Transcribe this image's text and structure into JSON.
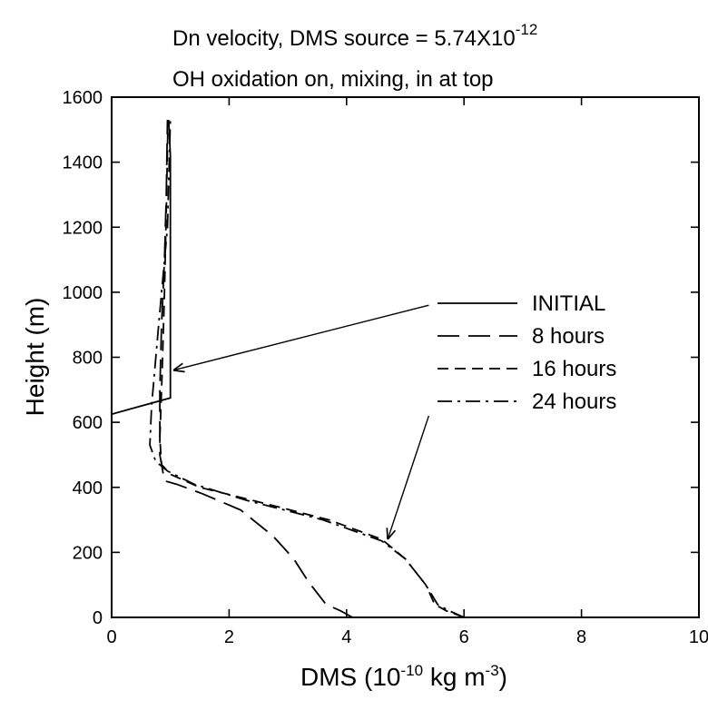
{
  "chart_data": {
    "type": "line",
    "title": {
      "line1_prefix": "Dn velocity, DMS source = 5.74X10",
      "line1_exp": "-12",
      "line2": "OH oxidation on, mixing, in at top"
    },
    "xlabel": {
      "prefix": "DMS (10",
      "exp1": "-10",
      "mid": " kg m",
      "exp2": "-3",
      "suffix": ")"
    },
    "ylabel": "Height (m)",
    "xlim": [
      0,
      10
    ],
    "ylim": [
      0,
      1600
    ],
    "xticks": [
      0,
      2,
      4,
      6,
      8,
      10
    ],
    "yticks": [
      0,
      200,
      400,
      600,
      800,
      1000,
      1200,
      1400,
      1600
    ],
    "xtick_labels": [
      "0",
      "2",
      "4",
      "6",
      "8",
      "10"
    ],
    "ytick_labels": [
      "0",
      "200",
      "400",
      "600",
      "800",
      "1000",
      "1200",
      "1400",
      "1600"
    ],
    "grid": false,
    "legend_position": "right-center",
    "series": [
      {
        "name": "INITIAL",
        "dash": "solid",
        "x": [
          0,
          1.0,
          1.0,
          0.97
        ],
        "y": [
          625,
          675,
          1420,
          1530
        ]
      },
      {
        "name": "8 hours",
        "dash": "long-dash",
        "x": [
          4.1,
          3.9,
          3.65,
          3.35,
          3.1,
          2.75,
          2.2,
          1.55,
          1.1,
          0.9,
          0.82,
          0.82,
          0.85,
          0.9,
          0.93,
          0.95
        ],
        "y": [
          0,
          20,
          40,
          110,
          180,
          250,
          330,
          380,
          410,
          420,
          500,
          700,
          900,
          1100,
          1300,
          1530
        ]
      },
      {
        "name": "16 hours",
        "dash": "dash",
        "x": [
          6.0,
          5.7,
          5.5,
          5.35,
          5.0,
          4.6,
          3.7,
          2.4,
          1.5,
          1.0,
          0.85,
          0.82,
          0.86,
          0.9,
          0.93,
          0.96
        ],
        "y": [
          0,
          20,
          40,
          100,
          180,
          240,
          300,
          360,
          400,
          440,
          470,
          550,
          750,
          1000,
          1250,
          1530
        ]
      },
      {
        "name": "24 hours",
        "dash": "dash-dot",
        "x": [
          6.0,
          5.75,
          5.55,
          5.35,
          5.0,
          4.6,
          3.6,
          2.3,
          1.4,
          0.95,
          0.75,
          0.65,
          0.68,
          0.8,
          0.95,
          1.0
        ],
        "y": [
          0,
          20,
          40,
          100,
          180,
          235,
          300,
          360,
          410,
          450,
          480,
          530,
          650,
          900,
          1200,
          1530
        ]
      }
    ],
    "annotations": [
      {
        "type": "arrow",
        "x1": 5.4,
        "y1": 960,
        "x2": 1.05,
        "y2": 760,
        "target": "INITIAL"
      },
      {
        "type": "arrow",
        "x1": 5.4,
        "y1": 620,
        "x2": 4.7,
        "y2": 240,
        "target": "24 hours"
      }
    ]
  }
}
